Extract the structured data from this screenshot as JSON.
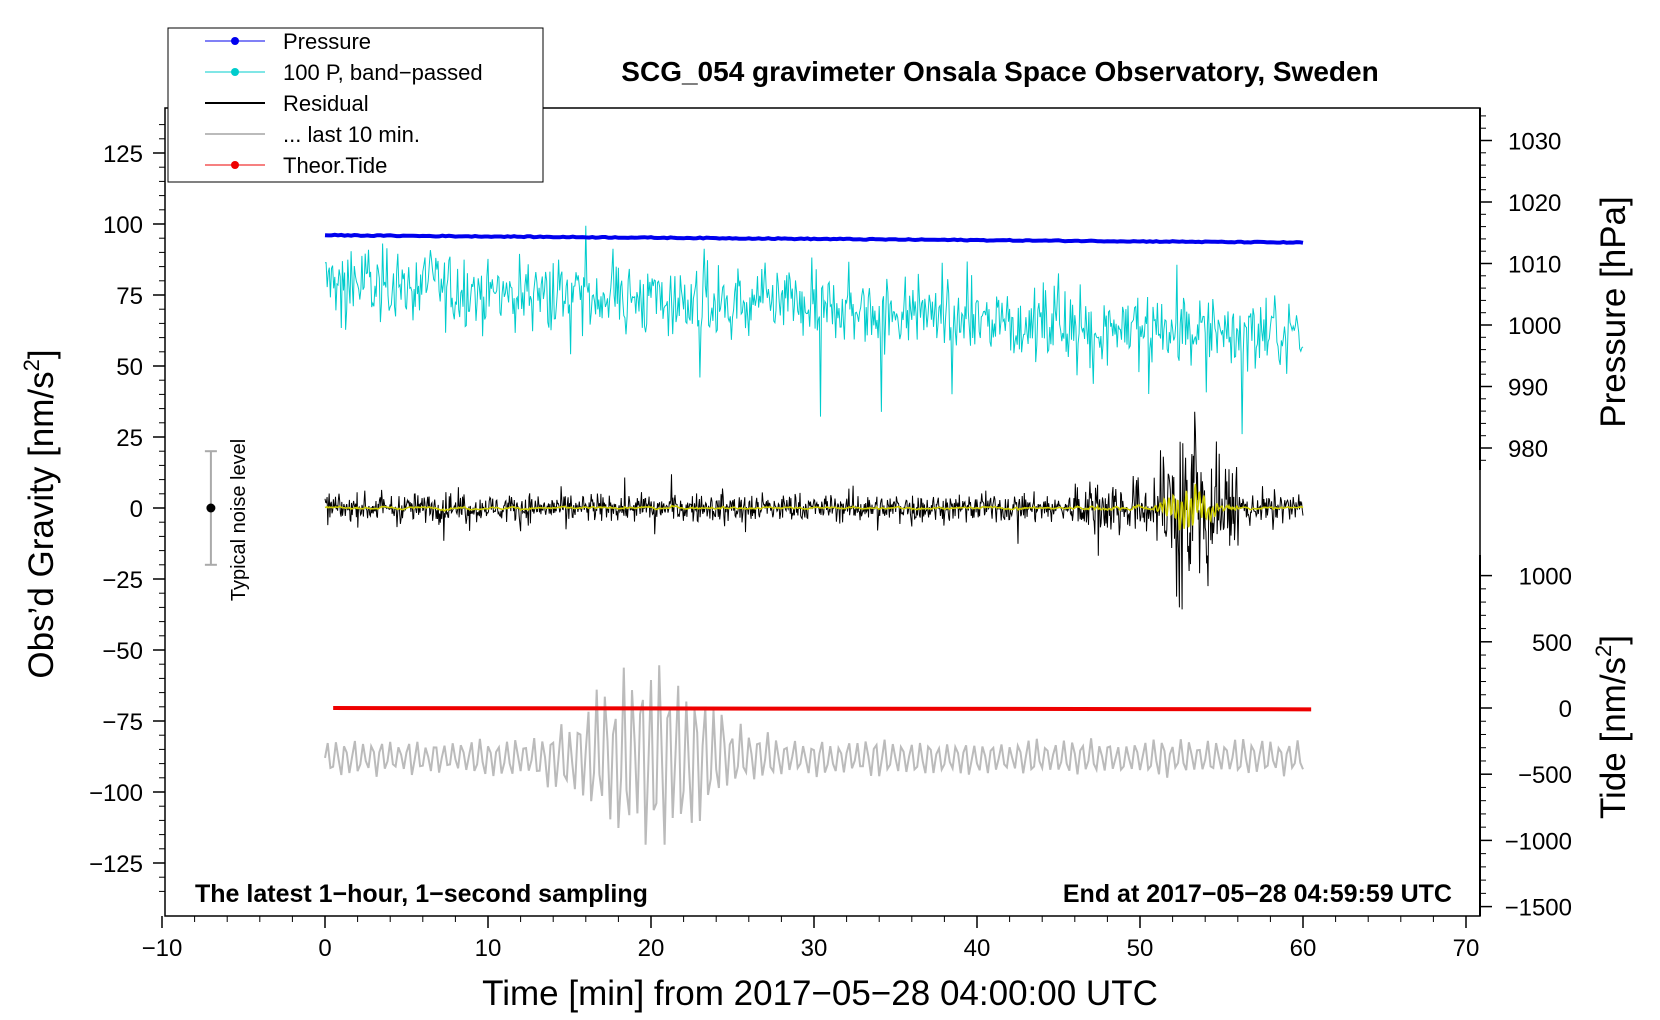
{
  "chart_data": {
    "type": "line",
    "title": "SCG_054 gravimeter Onsala Space Observatory, Sweden",
    "xlabel": "Time [min] from 2017−05−28 04:00:00 UTC",
    "xlim": [
      -10,
      70
    ],
    "x_ticks": [
      "−10",
      "0",
      "10",
      "20",
      "30",
      "40",
      "50",
      "60",
      "70"
    ],
    "left_axis": {
      "label_main": "Obs’d Gravity [nm/s",
      "label_sup": "2",
      "label_end": "]",
      "ylim": [
        -140,
        140
      ],
      "ticks": [
        125,
        100,
        75,
        50,
        25,
        0,
        -25,
        -50,
        -75,
        -100,
        -125
      ],
      "tick_labels": [
        "125",
        "100",
        "75",
        "50",
        "25",
        "0",
        "−25",
        "−50",
        "−75",
        "−100",
        "−125"
      ]
    },
    "pressure_axis": {
      "label": "Pressure [hPa]",
      "ticks": [
        980,
        990,
        1000,
        1010,
        1020,
        1030
      ],
      "tick_labels": [
        "980",
        "990",
        "1000",
        "1010",
        "1020",
        "1030"
      ]
    },
    "tide_axis": {
      "label_main": "Tide [nm/s",
      "label_sup": "2",
      "label_end": "]",
      "ylim": [
        -1500,
        1000
      ],
      "ticks": [
        1000,
        500,
        0,
        -500,
        -1000,
        -1500
      ],
      "tick_labels": [
        "1000",
        "500",
        "0",
        "−500",
        "−1000",
        "−1500"
      ]
    },
    "legend": {
      "placement": "top-left",
      "items": [
        {
          "label": "Pressure",
          "color": "#0000ee",
          "marker": true
        },
        {
          "label": "100 P, band−passed",
          "color": "#00cccc",
          "marker": true
        },
        {
          "label": "Residual",
          "color": "#000000",
          "marker": false
        },
        {
          "label": "... last 10 min.",
          "color": "#bbbbbb",
          "marker": false
        },
        {
          "label": "Theor.Tide",
          "color": "#ee0000",
          "marker": true
        }
      ]
    },
    "series": [
      {
        "name": "Pressure",
        "color": "#0000ee",
        "axis": "pressure",
        "x_range": [
          0,
          60
        ],
        "start_hpa": 1014.6,
        "end_hpa": 1013.4
      },
      {
        "name": "100 P, band−passed",
        "color": "#00cccc",
        "axis": "left",
        "x_range": [
          0,
          60
        ],
        "baseline_start": 80,
        "baseline_end": 60,
        "amplitude": 9
      },
      {
        "name": "Residual",
        "color": "#000000",
        "axis": "left",
        "x_range": [
          0,
          60
        ],
        "baseline": 0,
        "amplitude": 4,
        "burst_peak_min": 53,
        "burst_max": 30
      },
      {
        "name": "... last 10 min.",
        "color": "#bbbbbb",
        "axis": "left",
        "x_range": [
          0,
          60
        ],
        "baseline": -88,
        "amplitude": 7,
        "burst_center_min": 20,
        "burst_max": 30
      },
      {
        "name": "Theor.Tide",
        "color": "#ee0000",
        "axis": "tide",
        "x_range": [
          0.5,
          60.5
        ],
        "start": 0,
        "end": -10
      }
    ],
    "noise_bar": {
      "label": "Typical noise level",
      "x": -7,
      "y": 0,
      "low": -20,
      "high": 20
    },
    "annotations": {
      "left": "The latest 1−hour, 1−second sampling",
      "right": "End at 2017−05−28 04:59:59 UTC"
    }
  }
}
